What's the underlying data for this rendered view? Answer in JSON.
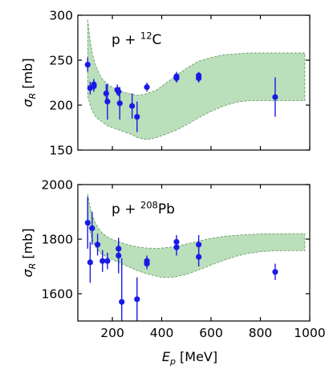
{
  "chart_data": [
    {
      "type": "scatter",
      "annotation": "p + ¹²C",
      "ylabel": "σ_R  [mb]",
      "xlim": [
        60,
        1000
      ],
      "ylim": [
        150,
        300
      ],
      "yticks": [
        150,
        200,
        250,
        300
      ],
      "xticks": [
        200,
        400,
        600,
        800,
        1000
      ],
      "show_x_tick_labels": false,
      "grid": false,
      "band": {
        "x": [
          100,
          110,
          120,
          130,
          140,
          150,
          160,
          180,
          200,
          220,
          250,
          280,
          300,
          330,
          350,
          380,
          400,
          450,
          500,
          550,
          600,
          650,
          700,
          750,
          800,
          850,
          900,
          950,
          980
        ],
        "lower": [
          210,
          200,
          193,
          188,
          185,
          183,
          181,
          177,
          175,
          173,
          170,
          167,
          164,
          162,
          162,
          164,
          166,
          171,
          178,
          186,
          193,
          199,
          203,
          205,
          205,
          205,
          205,
          205,
          205
        ],
        "upper": [
          295,
          272,
          256,
          246,
          239,
          233,
          229,
          223,
          220,
          217,
          214,
          212,
          211,
          212,
          214,
          217,
          221,
          231,
          241,
          249,
          253,
          256,
          257,
          258,
          258,
          258,
          258,
          258,
          258
        ]
      },
      "points": [
        {
          "x": 100,
          "y": 245,
          "err": 8
        },
        {
          "x": 110,
          "y": 219,
          "err": 7
        },
        {
          "x": 125,
          "y": 221,
          "err": 6
        },
        {
          "x": 125,
          "y": 223,
          "err": 6
        },
        {
          "x": 175,
          "y": 213,
          "err": 10
        },
        {
          "x": 180,
          "y": 204,
          "err": 20
        },
        {
          "x": 220,
          "y": 217,
          "err": 6
        },
        {
          "x": 225,
          "y": 215,
          "err": 5
        },
        {
          "x": 230,
          "y": 202,
          "err": 18
        },
        {
          "x": 280,
          "y": 199,
          "err": 14
        },
        {
          "x": 300,
          "y": 187,
          "err": 17
        },
        {
          "x": 340,
          "y": 220,
          "err": 5
        },
        {
          "x": 460,
          "y": 230,
          "err": 5
        },
        {
          "x": 460,
          "y": 232,
          "err": 5
        },
        {
          "x": 550,
          "y": 230,
          "err": 5
        },
        {
          "x": 550,
          "y": 233,
          "err": 4
        },
        {
          "x": 860,
          "y": 209,
          "err": 22
        }
      ]
    },
    {
      "type": "scatter",
      "annotation": "p + ²⁰⁸Pb",
      "xlabel": "E_p  [MeV]",
      "ylabel": "σ_R  [mb]",
      "xlim": [
        60,
        1000
      ],
      "ylim": [
        1500,
        2000
      ],
      "yticks": [
        1600,
        1800,
        2000
      ],
      "xticks": [
        200,
        400,
        600,
        800,
        1000
      ],
      "xticklabels": [
        "200",
        "400",
        "600",
        "800",
        "1000"
      ],
      "show_x_tick_labels": true,
      "grid": false,
      "band": {
        "x": [
          100,
          110,
          120,
          130,
          140,
          150,
          160,
          180,
          200,
          220,
          250,
          280,
          300,
          330,
          350,
          380,
          400,
          450,
          500,
          550,
          600,
          650,
          700,
          750,
          800,
          850,
          900,
          950,
          980
        ],
        "lower": [
          1865,
          1825,
          1795,
          1775,
          1762,
          1752,
          1744,
          1733,
          1725,
          1717,
          1705,
          1693,
          1685,
          1676,
          1671,
          1664,
          1660,
          1661,
          1671,
          1687,
          1705,
          1722,
          1737,
          1748,
          1754,
          1757,
          1758,
          1758,
          1758
        ],
        "upper": [
          1965,
          1915,
          1885,
          1862,
          1845,
          1832,
          1822,
          1808,
          1799,
          1792,
          1783,
          1776,
          1772,
          1768,
          1767,
          1766,
          1767,
          1772,
          1782,
          1793,
          1803,
          1810,
          1814,
          1817,
          1819,
          1819,
          1820,
          1820,
          1820
        ]
      },
      "points": [
        {
          "x": 100,
          "y": 1860,
          "err": 95
        },
        {
          "x": 110,
          "y": 1715,
          "err": 75
        },
        {
          "x": 118,
          "y": 1840,
          "err": 60
        },
        {
          "x": 140,
          "y": 1780,
          "err": 40
        },
        {
          "x": 160,
          "y": 1720,
          "err": 40
        },
        {
          "x": 180,
          "y": 1720,
          "err": 30
        },
        {
          "x": 225,
          "y": 1765,
          "err": 30
        },
        {
          "x": 225,
          "y": 1740,
          "err": 65
        },
        {
          "x": 238,
          "y": 1570,
          "err": 160
        },
        {
          "x": 300,
          "y": 1580,
          "err": 80
        },
        {
          "x": 340,
          "y": 1720,
          "err": 20
        },
        {
          "x": 340,
          "y": 1710,
          "err": 20
        },
        {
          "x": 460,
          "y": 1790,
          "err": 25
        },
        {
          "x": 460,
          "y": 1770,
          "err": 30
        },
        {
          "x": 550,
          "y": 1780,
          "err": 35
        },
        {
          "x": 550,
          "y": 1735,
          "err": 35
        },
        {
          "x": 860,
          "y": 1680,
          "err": 30
        }
      ]
    }
  ]
}
